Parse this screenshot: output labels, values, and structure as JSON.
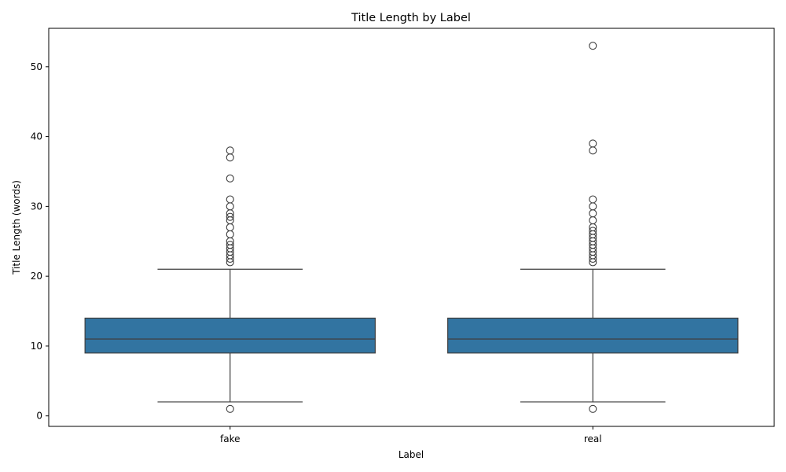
{
  "chart_data": {
    "type": "box",
    "title": "Title Length by Label",
    "xlabel": "Label",
    "ylabel": "Title Length (words)",
    "ylim": [
      -1.5,
      55.5
    ],
    "yticks": [
      0,
      10,
      20,
      30,
      40,
      50
    ],
    "grid": false,
    "legend": "none",
    "box_color": "#3274a1",
    "line_color": "#3f3f3f",
    "categories": [
      "fake",
      "real"
    ],
    "boxes": [
      {
        "category": "fake",
        "whisker_low": 2,
        "q1": 9,
        "median": 11,
        "q3": 14,
        "whisker_high": 21,
        "outliers": [
          1,
          22,
          22.5,
          23,
          23.5,
          24,
          24.5,
          25,
          26,
          27,
          28,
          28.5,
          29,
          30,
          31,
          34,
          37,
          38
        ]
      },
      {
        "category": "real",
        "whisker_low": 2,
        "q1": 9,
        "median": 11,
        "q3": 14,
        "whisker_high": 21,
        "outliers": [
          1,
          22,
          22.5,
          23,
          23.5,
          24,
          24.5,
          25,
          25.5,
          26,
          26.5,
          27,
          28,
          29,
          30,
          31,
          38,
          39,
          53
        ]
      }
    ]
  }
}
